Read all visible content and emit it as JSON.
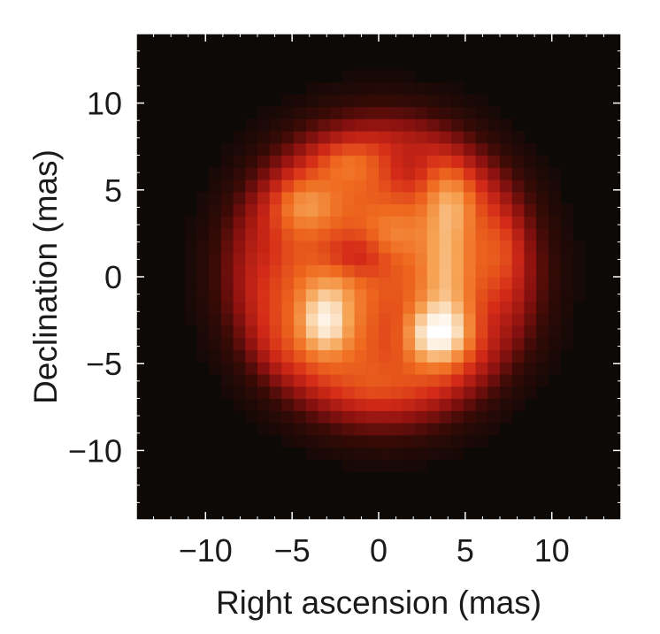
{
  "chart_data": {
    "type": "heatmap",
    "title": "",
    "xlabel": "Right ascension (mas)",
    "ylabel": "Declination (mas)",
    "xlim": [
      -14,
      14
    ],
    "ylim": [
      -14,
      14
    ],
    "x_reversed": false,
    "xticks": [
      -10,
      -5,
      0,
      5,
      10
    ],
    "xtick_labels": [
      "−10",
      "−5",
      "0",
      "5",
      "10"
    ],
    "yticks": [
      10,
      5,
      0,
      -5,
      -10
    ],
    "ytick_labels": [
      "10",
      "5",
      "0",
      "−5",
      "−10"
    ],
    "minor_tick_step": 1,
    "grid": false,
    "legend": "none",
    "colormap": [
      "#0d0907",
      "#3a0a06",
      "#8e1210",
      "#d42a18",
      "#ef6a1e",
      "#f6a456",
      "#fbe0bf",
      "#ffffff"
    ],
    "background_color": "#0d0907",
    "pixel_size_mas": 0.7,
    "disk": {
      "center": [
        0.2,
        0.3
      ],
      "radius": 8.6,
      "edge_softness": 1.0,
      "base_level": 0.55
    },
    "bright_features": [
      {
        "x": -3.1,
        "y": -2.6,
        "sx": 1.0,
        "sy": 1.3,
        "amp": 0.4
      },
      {
        "x": 3.4,
        "y": -3.3,
        "sx": 1.2,
        "sy": 1.1,
        "amp": 0.42
      },
      {
        "x": 3.9,
        "y": 0.4,
        "sx": 0.9,
        "sy": 3.0,
        "amp": 0.22
      },
      {
        "x": 4.3,
        "y": 4.4,
        "sx": 0.9,
        "sy": 1.3,
        "amp": 0.15
      },
      {
        "x": -4.3,
        "y": 4.2,
        "sx": 1.2,
        "sy": 1.0,
        "amp": 0.18
      },
      {
        "x": -2.4,
        "y": -0.4,
        "sx": 1.3,
        "sy": 1.0,
        "amp": 0.1
      },
      {
        "x": 0.8,
        "y": 2.4,
        "sx": 1.2,
        "sy": 1.0,
        "amp": 0.1
      },
      {
        "x": -1.9,
        "y": 6.7,
        "sx": 1.2,
        "sy": 0.9,
        "amp": 0.12
      },
      {
        "x": 7.4,
        "y": 1.7,
        "sx": 0.9,
        "sy": 1.4,
        "amp": 0.08
      },
      {
        "x": -6.4,
        "y": -4.6,
        "sx": 1.2,
        "sy": 1.2,
        "amp": 0.06
      },
      {
        "x": 0.0,
        "y": -6.5,
        "sx": 1.8,
        "sy": 0.9,
        "amp": 0.05
      }
    ],
    "dark_features": [
      {
        "x": -1.3,
        "y": 1.2,
        "sx": 1.4,
        "sy": 1.0,
        "amp": 0.16
      },
      {
        "x": 1.7,
        "y": 6.2,
        "sx": 1.0,
        "sy": 1.1,
        "amp": 0.13
      },
      {
        "x": 0.9,
        "y": -3.1,
        "sx": 0.8,
        "sy": 1.5,
        "amp": 0.08
      },
      {
        "x": -6.6,
        "y": 1.6,
        "sx": 1.0,
        "sy": 1.6,
        "amp": 0.07
      },
      {
        "x": 6.7,
        "y": -2.6,
        "sx": 0.9,
        "sy": 1.3,
        "amp": 0.07
      }
    ]
  }
}
